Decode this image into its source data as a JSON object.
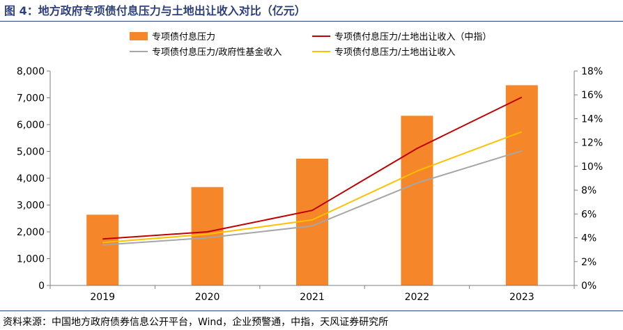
{
  "figure": {
    "title": "图 4：地方政府专项债付息压力与土地出让收入对比（亿元）",
    "source": "资料来源：中国地方政府债券信息公开平台，Wind，企业预警通，中指，天风证券研究所"
  },
  "colors": {
    "bar": "#f5862a",
    "line_cric": "#c00000",
    "line_gov_fund": "#a6a6a6",
    "line_land": "#ffc000",
    "title": "#2e3f7d"
  },
  "chart_data": {
    "type": "bar",
    "categories": [
      "2019",
      "2020",
      "2021",
      "2022",
      "2023"
    ],
    "series": [
      {
        "name": "专项债付息压力",
        "type": "bar",
        "axis": "left",
        "values": [
          2640,
          3670,
          4730,
          6330,
          7470
        ]
      },
      {
        "name": "专项债付息压力/土地出让收入（中指）",
        "type": "line",
        "axis": "right",
        "values": [
          3.9,
          4.5,
          6.3,
          11.5,
          15.8
        ]
      },
      {
        "name": "专项债付息压力/政府性基金收入",
        "type": "line",
        "axis": "right",
        "values": [
          3.4,
          4.0,
          5.0,
          8.6,
          11.3
        ]
      },
      {
        "name": "专项债付息压力/土地出让收入",
        "type": "line",
        "axis": "right",
        "values": [
          3.6,
          4.3,
          5.5,
          9.6,
          12.9
        ]
      }
    ],
    "ylim": [
      0,
      8000
    ],
    "yticks": [
      0,
      1000,
      2000,
      3000,
      4000,
      5000,
      6000,
      7000,
      8000
    ],
    "yticklabels": [
      "0",
      "1,000",
      "2,000",
      "3,000",
      "4,000",
      "5,000",
      "6,000",
      "7,000",
      "8,000"
    ],
    "y2lim": [
      0,
      18
    ],
    "y2ticks": [
      0,
      2,
      4,
      6,
      8,
      10,
      12,
      14,
      16,
      18
    ],
    "y2ticklabels": [
      "0%",
      "2%",
      "4%",
      "6%",
      "8%",
      "10%",
      "12%",
      "14%",
      "16%",
      "18%"
    ],
    "grid": false,
    "legend_position": "top"
  }
}
